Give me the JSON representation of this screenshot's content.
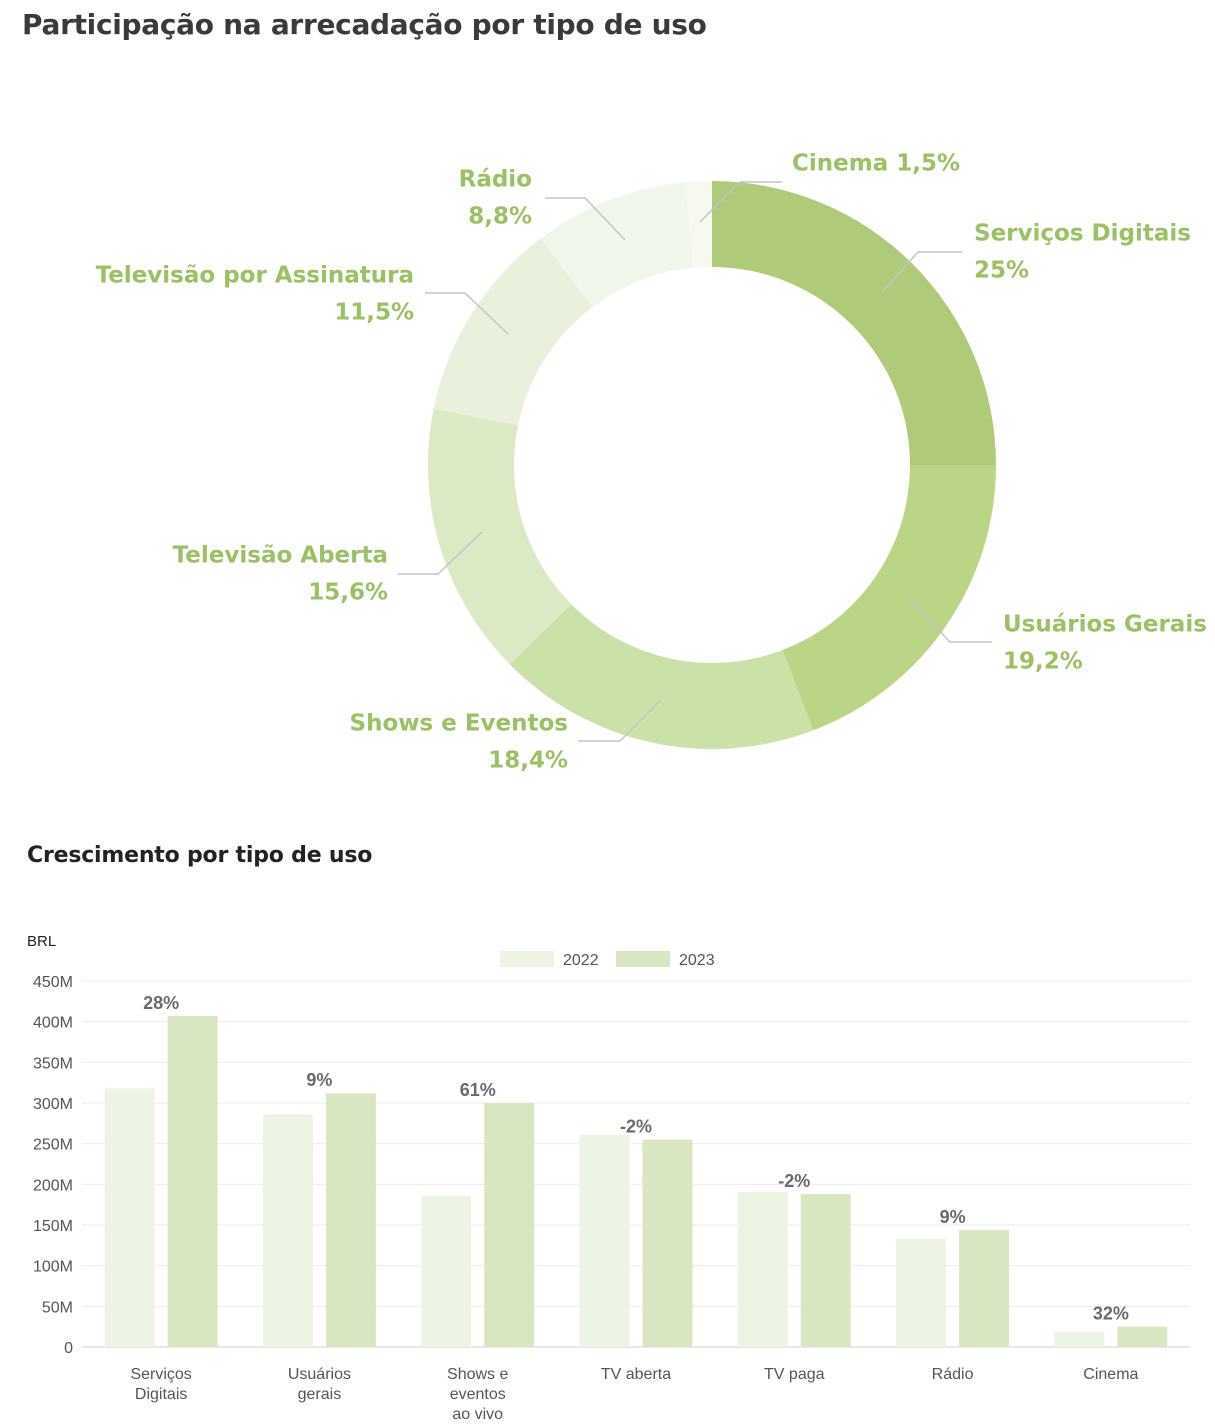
{
  "chart_data": [
    {
      "type": "pie",
      "title": "Participação na arrecadação por tipo de uso",
      "colors": [
        "#afcb7a",
        "#bad586",
        "#cae1a8",
        "#dce9c5",
        "#e9f1dc",
        "#f1f6ea",
        "#f6f9f0"
      ],
      "label_color": "#9cc064",
      "slices": [
        {
          "name": "Serviços Digitais",
          "value_label": "25%",
          "value": 25.0
        },
        {
          "name": "Usuários Gerais",
          "value_label": "19,2%",
          "value": 19.2
        },
        {
          "name": "Shows e Eventos",
          "value_label": "18,4%",
          "value": 18.4
        },
        {
          "name": "Televisão Aberta",
          "value_label": "15,6%",
          "value": 15.6
        },
        {
          "name": "Televisão por Assinatura",
          "value_label": "11,5%",
          "value": 11.5
        },
        {
          "name": "Rádio",
          "value_label": "8,8%",
          "value": 8.8
        },
        {
          "name": "Cinema",
          "value_label": "1,5%",
          "value": 1.5
        }
      ]
    },
    {
      "type": "bar",
      "title": "Crescimento por tipo de uso",
      "ylabel": "BRL",
      "ylim": [
        0,
        450
      ],
      "yticks": [
        0,
        50,
        100,
        150,
        200,
        250,
        300,
        350,
        400,
        450
      ],
      "ytick_labels": [
        "0",
        "50M",
        "100M",
        "150M",
        "200M",
        "250M",
        "300M",
        "350M",
        "400M",
        "450M"
      ],
      "grid": true,
      "legend_position": "top-center",
      "categories": [
        [
          "Serviços",
          "Digitais"
        ],
        [
          "Usuários",
          "gerais"
        ],
        [
          "Shows e",
          "eventos",
          "ao vivo"
        ],
        [
          "TV aberta"
        ],
        [
          "TV paga"
        ],
        [
          "Rádio"
        ],
        [
          "Cinema"
        ]
      ],
      "series": [
        {
          "name": "2022",
          "color": "#eef4e4",
          "values": [
            318,
            286,
            186,
            261,
            191,
            133,
            19
          ]
        },
        {
          "name": "2023",
          "color": "#d8e7c1",
          "values": [
            407,
            312,
            300,
            255,
            188,
            144,
            25
          ]
        }
      ],
      "growth_labels": [
        "28%",
        "9%",
        "61%",
        "-2%",
        "-2%",
        "9%",
        "32%"
      ]
    }
  ]
}
